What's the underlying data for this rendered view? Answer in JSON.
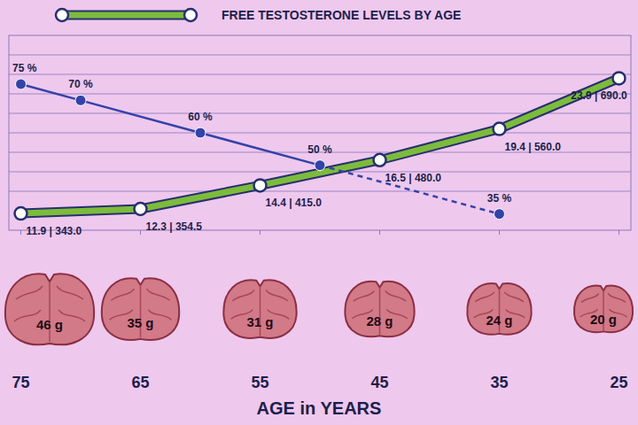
{
  "chart_data": {
    "type": "line",
    "x_label": "AGE in YEARS",
    "xlim": [
      76,
      24
    ],
    "xticks": [
      75,
      65,
      55,
      45,
      35,
      25
    ],
    "ylim": [
      300,
      800
    ],
    "yticks": [
      400,
      450,
      500,
      550,
      600,
      650,
      700,
      750
    ],
    "y2lim": [
      30,
      90
    ],
    "grid": true,
    "legend": "top",
    "tick_labels": "x",
    "data_labels": true,
    "series": [
      {
        "name": "FREE TESTOSTERONE LEVELS BY AGE",
        "color": "#7dbb3c",
        "marker": "circle",
        "line_style": "solid",
        "x": [
          75,
          65,
          55,
          45,
          35,
          25
        ],
        "values": [
          343.0,
          354.5,
          415.0,
          480.0,
          560.0,
          690.0
        ],
        "value_labels": [
          "11.9 | 343.0",
          "12.3 | 354.5",
          "14.4 | 415.0",
          "16.5 | 480.0",
          "19.4 | 560.0",
          "23.9 | 690.0"
        ]
      },
      {
        "color": "#3343a8",
        "marker": "dot",
        "line_style": "solid",
        "axis": "y2",
        "x": [
          75,
          70,
          60,
          50,
          35
        ],
        "values": [
          75,
          70,
          60,
          50,
          35
        ],
        "value_labels": [
          "75 %",
          "70 %",
          "60 %",
          "50 %",
          "35 %"
        ]
      }
    ],
    "prostate_weights": {
      "x": [
        75,
        65,
        55,
        45,
        35,
        25
      ],
      "values": [
        46,
        35,
        31,
        28,
        24,
        20
      ],
      "value_labels": [
        "46 g",
        "35 g",
        "31 g",
        "28 g",
        "24 g",
        "20 g"
      ]
    }
  }
}
